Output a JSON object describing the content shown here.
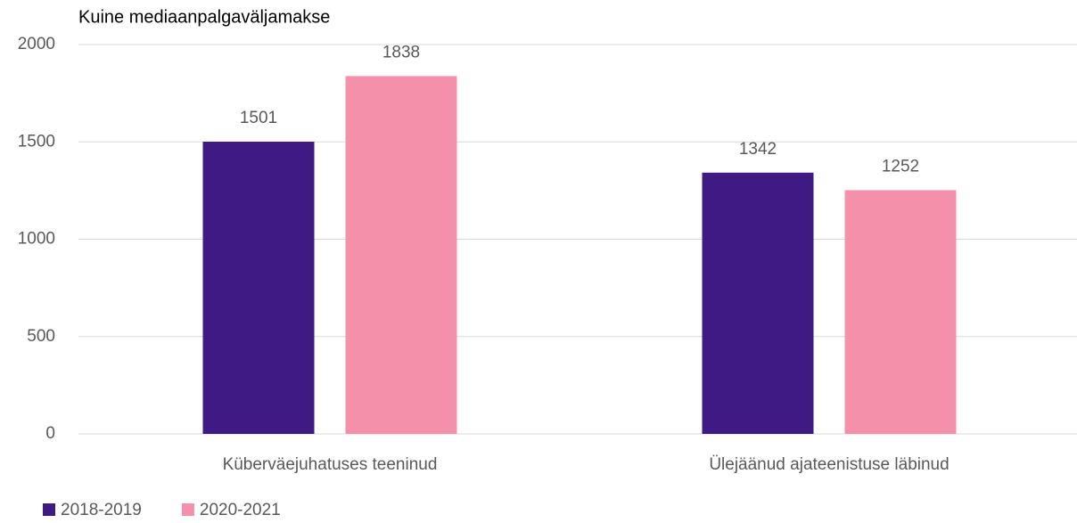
{
  "chart_data": {
    "type": "bar",
    "title": "Kuine mediaanpalgaväljamakse",
    "categories": [
      "Küberväejuhatuses teeninud",
      "Ülejäänud ajateenistuse läbinud"
    ],
    "series": [
      {
        "name": "2018-2019",
        "color": "#3f1a84",
        "values": [
          1501,
          1342
        ]
      },
      {
        "name": "2020-2021",
        "color": "#f590aa",
        "values": [
          1838,
          1252
        ]
      }
    ],
    "ylim": [
      0,
      2000
    ],
    "yticks": [
      0,
      500,
      1000,
      1500,
      2000
    ],
    "grid": true,
    "legend": "bottom-left"
  }
}
